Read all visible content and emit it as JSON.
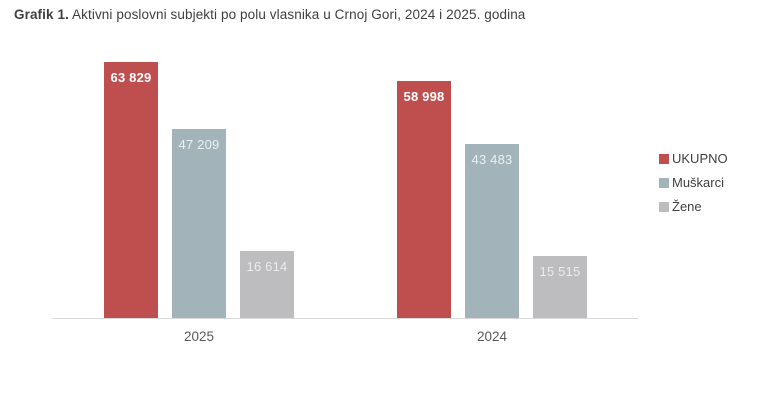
{
  "title": {
    "prefix": "Grafik 1.",
    "rest": " Aktivni poslovni subjekti po polu vlasnika u Crnoj Gori, 2024 i 2025. godina"
  },
  "colors": {
    "background": "#ffffff",
    "axis_line": "#d9d9d9",
    "title_text": "#3f3f3f",
    "axis_label_text": "#595959",
    "legend_text": "#404040",
    "ukupno": "#bf4e4f",
    "muskarci": "#a2b4ba",
    "zene": "#bdbdbf"
  },
  "chart_data": {
    "type": "bar",
    "title": "Grafik 1. Aktivni poslovni subjekti po polu vlasnika u Crnoj Gori, 2024 i 2025. godina",
    "categories": [
      "2025",
      "2024"
    ],
    "series": [
      {
        "name": "UKUPNO",
        "color": "#bf4e4f",
        "values": [
          63829,
          58998
        ],
        "labels": [
          "63 829",
          "58 998"
        ],
        "label_color": "#ffffff",
        "label_bold": true
      },
      {
        "name": "Muškarci",
        "color": "#a2b4ba",
        "values": [
          47209,
          43483
        ],
        "labels": [
          "47 209",
          "43 483"
        ],
        "label_color": "#eaf0f0",
        "label_bold": false
      },
      {
        "name": "Žene",
        "color": "#bdbdbf",
        "values": [
          16614,
          15515
        ],
        "labels": [
          "16 614",
          "15 515"
        ],
        "label_color": "#ebebeb",
        "label_bold": false
      }
    ],
    "xlabel": "",
    "ylabel": "",
    "ylim": [
      0,
      63829
    ],
    "grid": false,
    "y_axis_visible": false,
    "legend_position": "right",
    "data_labels": "inside-top"
  }
}
